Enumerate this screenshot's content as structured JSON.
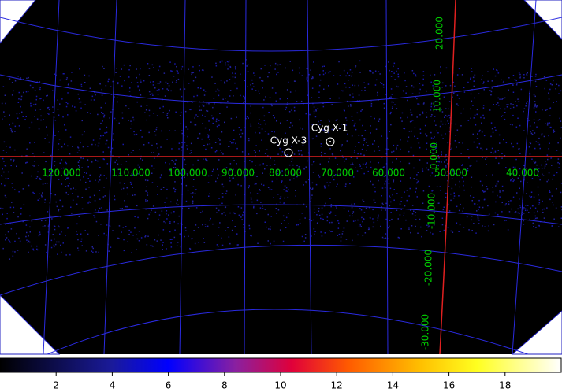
{
  "sky_map": {
    "sources": [
      {
        "label": "Cyg X-1"
      },
      {
        "label": "Cyg X-3"
      }
    ],
    "longitude_labels": [
      "120.000",
      "110.000",
      "100.000",
      "90.000",
      "80.000",
      "70.000",
      "60.000",
      "50.000",
      "40.000"
    ],
    "latitude_labels": [
      "20.000",
      "10.000",
      "0.000",
      "-10.000",
      "-20.000",
      "-30.000"
    ]
  },
  "colorbar": {
    "range": [
      0,
      20
    ],
    "ticks": [
      2,
      4,
      6,
      8,
      10,
      12,
      14,
      16,
      18
    ]
  }
}
